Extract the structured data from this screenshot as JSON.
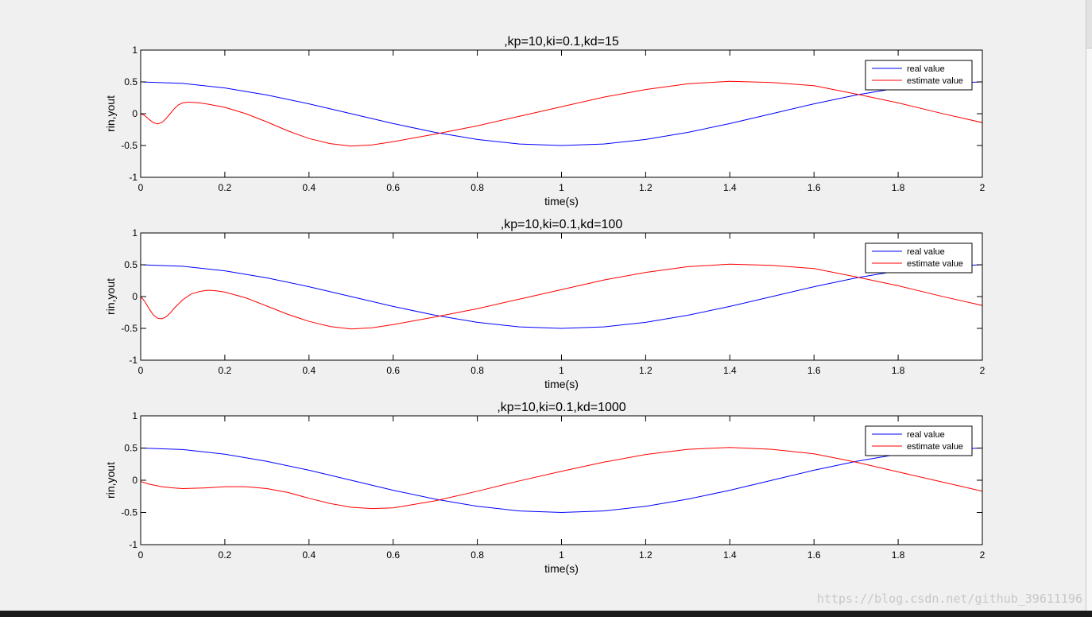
{
  "watermark": "https://blog.csdn.net/github_39611196",
  "colors": {
    "background": "#f0f0f0",
    "axes_background": "#ffffff",
    "real": "#0000ff",
    "estimate": "#ff0000"
  },
  "chart_data": [
    {
      "type": "line",
      "title": ",kp=10,ki=0.1,kd=15",
      "xlabel": "time(s)",
      "ylabel": "rin,yout",
      "xlim": [
        0,
        2
      ],
      "ylim": [
        -1,
        1
      ],
      "xticks": [
        "0",
        "0.2",
        "0.4",
        "0.6",
        "0.8",
        "1",
        "1.2",
        "1.4",
        "1.6",
        "1.8",
        "2"
      ],
      "yticks": [
        "-1",
        "-0.5",
        "0",
        "0.5",
        "1"
      ],
      "grid": false,
      "legend": {
        "position": "top-right",
        "entries": [
          "real value",
          "estimate value"
        ]
      },
      "series": [
        {
          "name": "real value",
          "color": "#0000ff",
          "x": [
            0,
            0.1,
            0.2,
            0.3,
            0.4,
            0.5,
            0.6,
            0.7,
            0.8,
            0.9,
            1.0,
            1.1,
            1.2,
            1.3,
            1.4,
            1.5,
            1.6,
            1.7,
            1.8,
            1.9,
            2.0
          ],
          "y": [
            0.5,
            0.476,
            0.405,
            0.294,
            0.155,
            0,
            -0.155,
            -0.294,
            -0.405,
            -0.476,
            -0.5,
            -0.476,
            -0.405,
            -0.294,
            -0.155,
            0,
            0.155,
            0.294,
            0.405,
            0.476,
            0.5
          ]
        },
        {
          "name": "estimate value",
          "color": "#ff0000",
          "x": [
            0,
            0.01,
            0.02,
            0.03,
            0.04,
            0.05,
            0.06,
            0.07,
            0.08,
            0.09,
            0.1,
            0.11,
            0.12,
            0.14,
            0.16,
            0.2,
            0.25,
            0.3,
            0.35,
            0.4,
            0.45,
            0.5,
            0.55,
            0.6,
            0.7,
            0.8,
            0.9,
            1.0,
            1.1,
            1.2,
            1.3,
            1.4,
            1.5,
            1.6,
            1.7,
            1.8,
            1.9,
            2.0
          ],
          "y": [
            0,
            -0.03,
            -0.09,
            -0.14,
            -0.16,
            -0.14,
            -0.08,
            0.0,
            0.08,
            0.14,
            0.17,
            0.18,
            0.18,
            0.17,
            0.15,
            0.1,
            0.0,
            -0.13,
            -0.27,
            -0.39,
            -0.47,
            -0.51,
            -0.49,
            -0.44,
            -0.32,
            -0.19,
            -0.04,
            0.11,
            0.26,
            0.38,
            0.47,
            0.51,
            0.49,
            0.44,
            0.31,
            0.17,
            0.01,
            -0.14
          ]
        }
      ]
    },
    {
      "type": "line",
      "title": ",kp=10,ki=0.1,kd=100",
      "xlabel": "time(s)",
      "ylabel": "rin,yout",
      "xlim": [
        0,
        2
      ],
      "ylim": [
        -1,
        1
      ],
      "xticks": [
        "0",
        "0.2",
        "0.4",
        "0.6",
        "0.8",
        "1",
        "1.2",
        "1.4",
        "1.6",
        "1.8",
        "2"
      ],
      "yticks": [
        "-1",
        "-0.5",
        "0",
        "0.5",
        "1"
      ],
      "grid": false,
      "legend": {
        "position": "top-right",
        "entries": [
          "real value",
          "estimate value"
        ]
      },
      "series": [
        {
          "name": "real value",
          "color": "#0000ff",
          "x": [
            0,
            0.1,
            0.2,
            0.3,
            0.4,
            0.5,
            0.6,
            0.7,
            0.8,
            0.9,
            1.0,
            1.1,
            1.2,
            1.3,
            1.4,
            1.5,
            1.6,
            1.7,
            1.8,
            1.9,
            2.0
          ],
          "y": [
            0.5,
            0.476,
            0.405,
            0.294,
            0.155,
            0,
            -0.155,
            -0.294,
            -0.405,
            -0.476,
            -0.5,
            -0.476,
            -0.405,
            -0.294,
            -0.155,
            0,
            0.155,
            0.294,
            0.405,
            0.476,
            0.5
          ]
        },
        {
          "name": "estimate value",
          "color": "#ff0000",
          "x": [
            0,
            0.01,
            0.02,
            0.03,
            0.04,
            0.05,
            0.06,
            0.07,
            0.08,
            0.1,
            0.12,
            0.14,
            0.16,
            0.18,
            0.2,
            0.25,
            0.3,
            0.35,
            0.4,
            0.45,
            0.5,
            0.55,
            0.6,
            0.7,
            0.8,
            0.9,
            1.0,
            1.1,
            1.2,
            1.3,
            1.4,
            1.5,
            1.6,
            1.7,
            1.8,
            1.9,
            2.0
          ],
          "y": [
            0,
            -0.08,
            -0.19,
            -0.29,
            -0.34,
            -0.35,
            -0.32,
            -0.26,
            -0.18,
            -0.05,
            0.04,
            0.08,
            0.1,
            0.09,
            0.07,
            -0.02,
            -0.15,
            -0.28,
            -0.39,
            -0.47,
            -0.51,
            -0.49,
            -0.44,
            -0.32,
            -0.19,
            -0.04,
            0.11,
            0.26,
            0.38,
            0.47,
            0.51,
            0.49,
            0.44,
            0.31,
            0.17,
            0.01,
            -0.14
          ]
        }
      ]
    },
    {
      "type": "line",
      "title": ",kp=10,ki=0.1,kd=1000",
      "xlabel": "time(s)",
      "ylabel": "rin,yout",
      "xlim": [
        0,
        2
      ],
      "ylim": [
        -1,
        1
      ],
      "xticks": [
        "0",
        "0.2",
        "0.4",
        "0.6",
        "0.8",
        "1",
        "1.2",
        "1.4",
        "1.6",
        "1.8",
        "2"
      ],
      "yticks": [
        "-1",
        "-0.5",
        "0",
        "0.5",
        "1"
      ],
      "grid": false,
      "legend": {
        "position": "top-right",
        "entries": [
          "real value",
          "estimate value"
        ]
      },
      "series": [
        {
          "name": "real value",
          "color": "#0000ff",
          "x": [
            0,
            0.1,
            0.2,
            0.3,
            0.4,
            0.5,
            0.6,
            0.7,
            0.8,
            0.9,
            1.0,
            1.1,
            1.2,
            1.3,
            1.4,
            1.5,
            1.6,
            1.7,
            1.8,
            1.9,
            2.0
          ],
          "y": [
            0.5,
            0.476,
            0.405,
            0.294,
            0.155,
            0,
            -0.155,
            -0.294,
            -0.405,
            -0.476,
            -0.5,
            -0.476,
            -0.405,
            -0.294,
            -0.155,
            0,
            0.155,
            0.294,
            0.405,
            0.476,
            0.5
          ]
        },
        {
          "name": "estimate value",
          "color": "#ff0000",
          "x": [
            0,
            0.02,
            0.05,
            0.08,
            0.1,
            0.15,
            0.2,
            0.25,
            0.3,
            0.35,
            0.4,
            0.45,
            0.5,
            0.55,
            0.6,
            0.7,
            0.8,
            0.9,
            1.0,
            1.1,
            1.2,
            1.3,
            1.4,
            1.5,
            1.6,
            1.7,
            1.8,
            1.9,
            2.0
          ],
          "y": [
            -0.02,
            -0.06,
            -0.1,
            -0.12,
            -0.13,
            -0.12,
            -0.1,
            -0.1,
            -0.13,
            -0.19,
            -0.28,
            -0.36,
            -0.42,
            -0.44,
            -0.43,
            -0.32,
            -0.17,
            -0.01,
            0.14,
            0.28,
            0.4,
            0.48,
            0.51,
            0.48,
            0.41,
            0.28,
            0.13,
            -0.02,
            -0.17
          ]
        }
      ]
    }
  ]
}
